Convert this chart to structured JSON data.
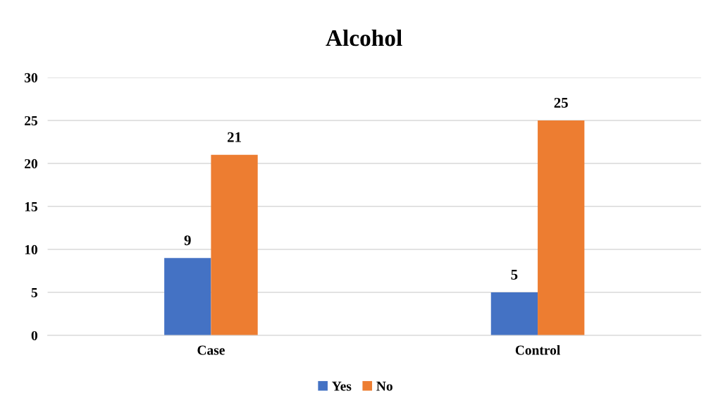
{
  "chart_data": {
    "type": "bar",
    "title": "Alcohol",
    "categories": [
      "Case",
      "Control"
    ],
    "series": [
      {
        "name": "Yes",
        "color": "#4472c4",
        "values": [
          9,
          5
        ]
      },
      {
        "name": "No",
        "color": "#ed7d31",
        "values": [
          21,
          25
        ]
      }
    ],
    "ylim": [
      0,
      30
    ],
    "yticks": [
      0,
      5,
      10,
      15,
      20,
      25,
      30
    ],
    "grid": "y",
    "legend": "bottom",
    "data_labels": true
  }
}
